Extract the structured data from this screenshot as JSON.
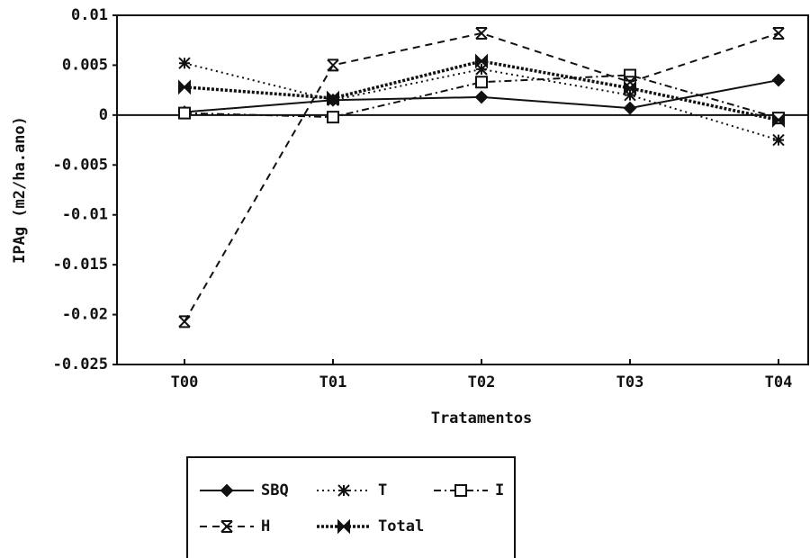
{
  "chart_data": {
    "type": "line",
    "x_label": "Tratamentos",
    "y_label": "IPAg (m2/ha.ano)",
    "categories": [
      "T00",
      "T01",
      "T02",
      "T03",
      "T04"
    ],
    "ylim": [
      -0.025,
      0.01
    ],
    "yticks": [
      0.01,
      0.005,
      0,
      -0.005,
      -0.01,
      -0.015,
      -0.02,
      -0.025
    ],
    "series": [
      {
        "name": "SBQ",
        "color": "#111111",
        "dash": "none",
        "marker": "diamond",
        "values": [
          0.0003,
          0.0015,
          0.0018,
          0.0007,
          0.0035
        ]
      },
      {
        "name": "T",
        "color": "#111111",
        "dash": "2 4",
        "marker": "star",
        "values": [
          0.0052,
          0.0015,
          0.0046,
          0.002,
          -0.0025
        ]
      },
      {
        "name": "I",
        "color": "#111111",
        "dash": "8 4 2 4",
        "marker": "square",
        "values": [
          0.0002,
          -0.0002,
          0.0033,
          0.004,
          -0.0003
        ]
      },
      {
        "name": "H",
        "color": "#111111",
        "dash": "8 6",
        "marker": "x",
        "values": [
          -0.0207,
          0.005,
          0.0082,
          0.0033,
          0.0082
        ]
      },
      {
        "name": "Total",
        "color": "#111111",
        "dash": "3 2",
        "marker": "bowtie",
        "values": [
          0.0028,
          0.0017,
          0.0054,
          0.0027,
          -0.0005
        ]
      }
    ],
    "legend": "bottom"
  }
}
